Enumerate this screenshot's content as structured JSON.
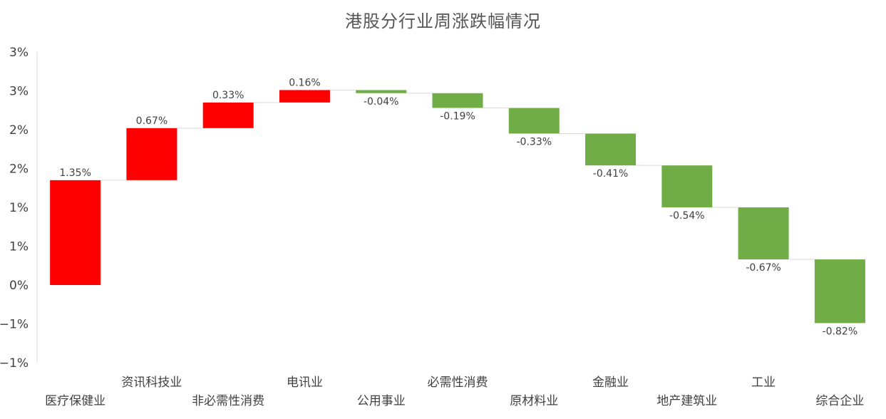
{
  "chart_data": {
    "type": "bar",
    "subtype": "waterfall",
    "title": "港股分行业周涨跌幅情况",
    "xlabel": "",
    "ylabel": "",
    "categories": [
      "医疗保健业",
      "资讯科技业",
      "非必需性消费",
      "电讯业",
      "公用事业",
      "必需性消费",
      "原材料业",
      "金融业",
      "地产建筑业",
      "工业",
      "综合企业"
    ],
    "values": [
      1.35,
      0.67,
      0.33,
      0.16,
      -0.04,
      -0.19,
      -0.33,
      -0.41,
      -0.54,
      -0.67,
      -0.82
    ],
    "value_labels": [
      "1.35%",
      "0.67%",
      "0.33%",
      "0.16%",
      "-0.04%",
      "-0.19%",
      "-0.33%",
      "-0.41%",
      "-0.54%",
      "-0.67%",
      "-0.82%"
    ],
    "ytick_labels": [
      "3%",
      "3%",
      "2%",
      "2%",
      "1%",
      "1%",
      "0%",
      "−1%",
      "−1%"
    ],
    "ylim": [
      -1.0,
      3.0
    ],
    "ytick_step": 0.5,
    "grid": false,
    "connectors": true,
    "colors": {
      "increase": "#ff0000",
      "decrease": "#70ad47",
      "connector": "#d9d9d9",
      "axis": "#d9d9d9",
      "text": "#404040",
      "title": "#555555"
    }
  }
}
